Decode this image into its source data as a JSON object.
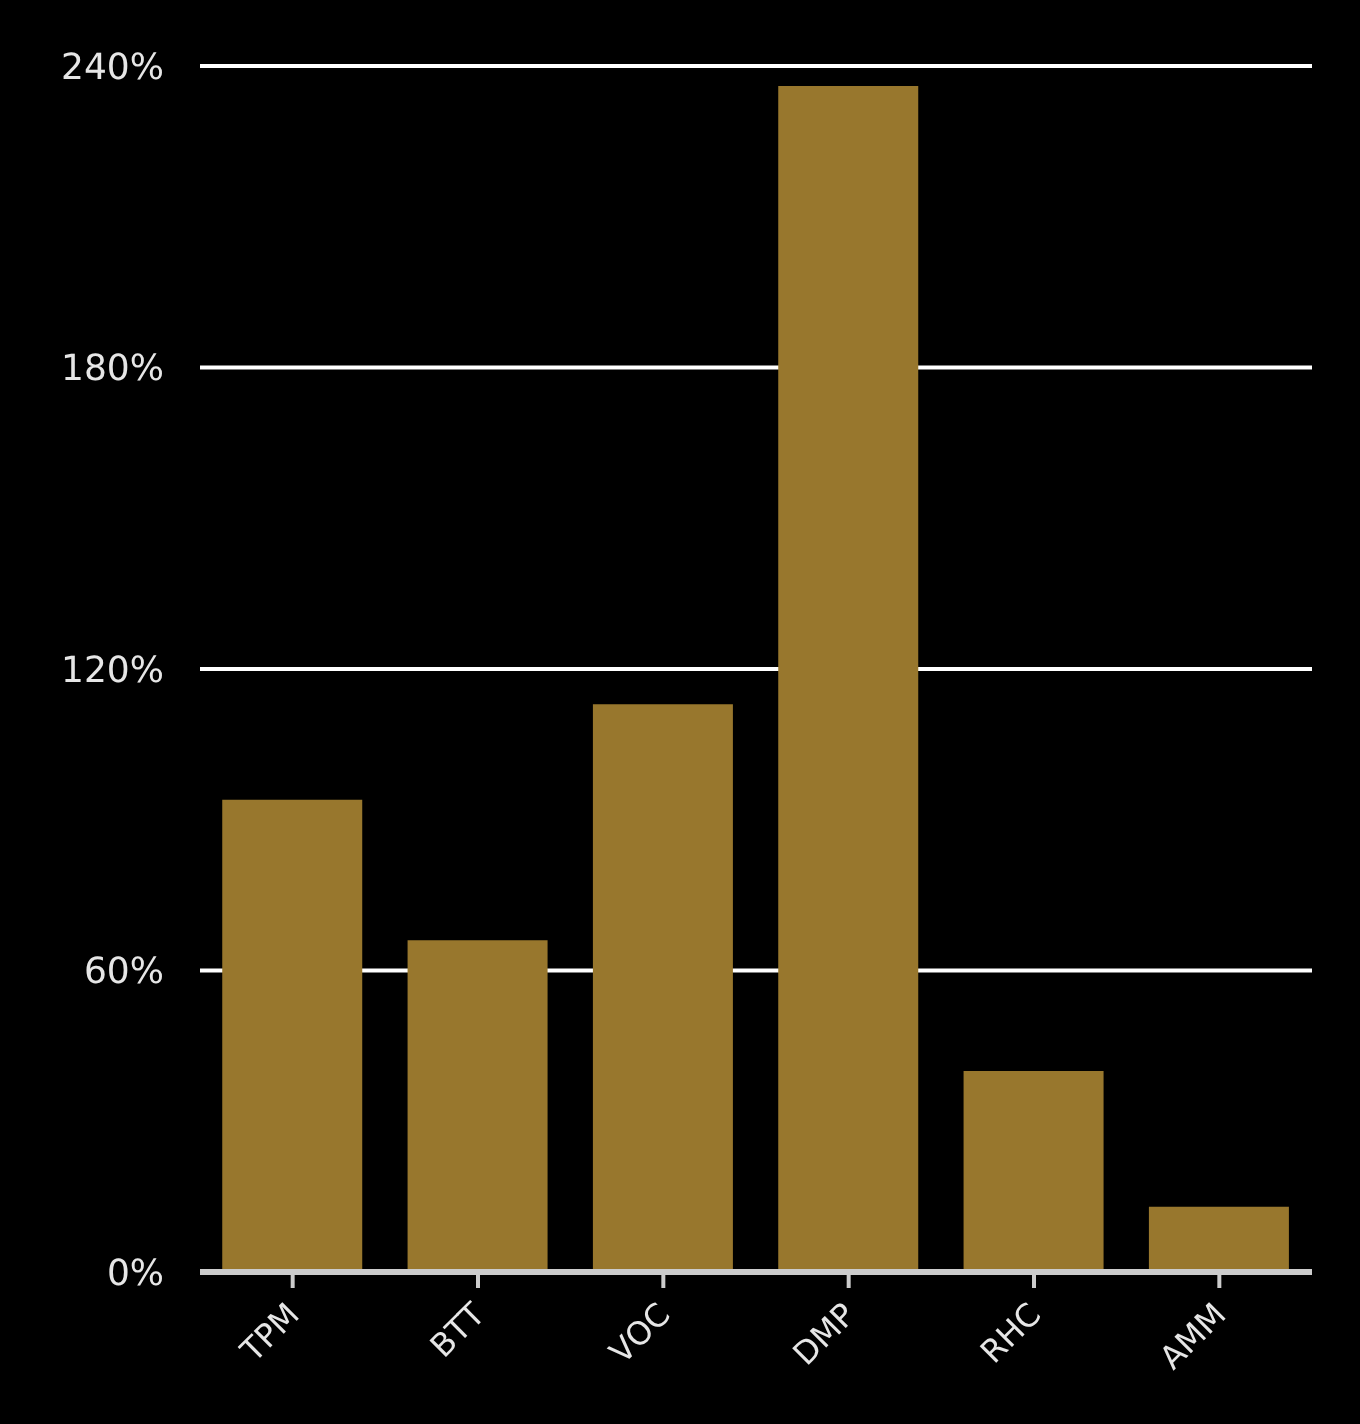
{
  "chart_data": {
    "type": "bar",
    "categories": [
      "TPM",
      "BTT",
      "VOC",
      "DMP",
      "RHC",
      "AMM"
    ],
    "values": [
      94,
      66,
      113,
      236,
      40,
      13
    ],
    "color": "#98772d",
    "ylim": [
      0,
      240
    ],
    "yticks": [
      {
        "value": 0,
        "label": "0%"
      },
      {
        "value": 60,
        "label": "60%"
      },
      {
        "value": 120,
        "label": "120%"
      },
      {
        "value": 180,
        "label": "180%"
      },
      {
        "value": 240,
        "label": "240%"
      }
    ],
    "grid": "y",
    "legend": false
  }
}
